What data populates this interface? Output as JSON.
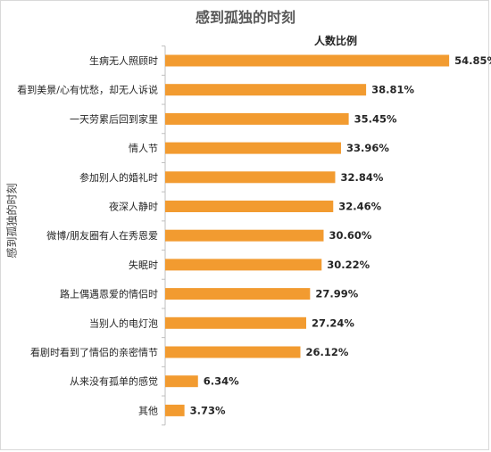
{
  "chart_data": {
    "type": "bar",
    "orientation": "horizontal",
    "title": "感到孤独的时刻",
    "legend": "人数比例",
    "legend_position": "top-right",
    "ylabel": "感到孤独的时刻",
    "xlabel": "",
    "xlim": [
      0,
      60
    ],
    "grid": false,
    "bar_color": "#f29b30",
    "categories": [
      "生病无人照顾时",
      "看到美景/心有忧愁，却无人诉说",
      "一天劳累后回到家里",
      "情人节",
      "参加别人的婚礼时",
      "夜深人静时",
      "微博/朋友圈有人在秀恩爱",
      "失眠时",
      "路上偶遇恩爱的情侣时",
      "当别人的电灯泡",
      "看剧时看到了情侣的亲密情节",
      "从来没有孤单的感觉",
      "其他"
    ],
    "values": [
      54.85,
      38.81,
      35.45,
      33.96,
      32.84,
      32.46,
      30.6,
      30.22,
      27.99,
      27.24,
      26.12,
      6.34,
      3.73
    ],
    "value_labels": [
      "54.85%",
      "38.81%",
      "35.45%",
      "33.96%",
      "32.84%",
      "32.46%",
      "30.60%",
      "30.22%",
      "27.99%",
      "27.24%",
      "26.12%",
      "6.34%",
      "3.73%"
    ]
  }
}
